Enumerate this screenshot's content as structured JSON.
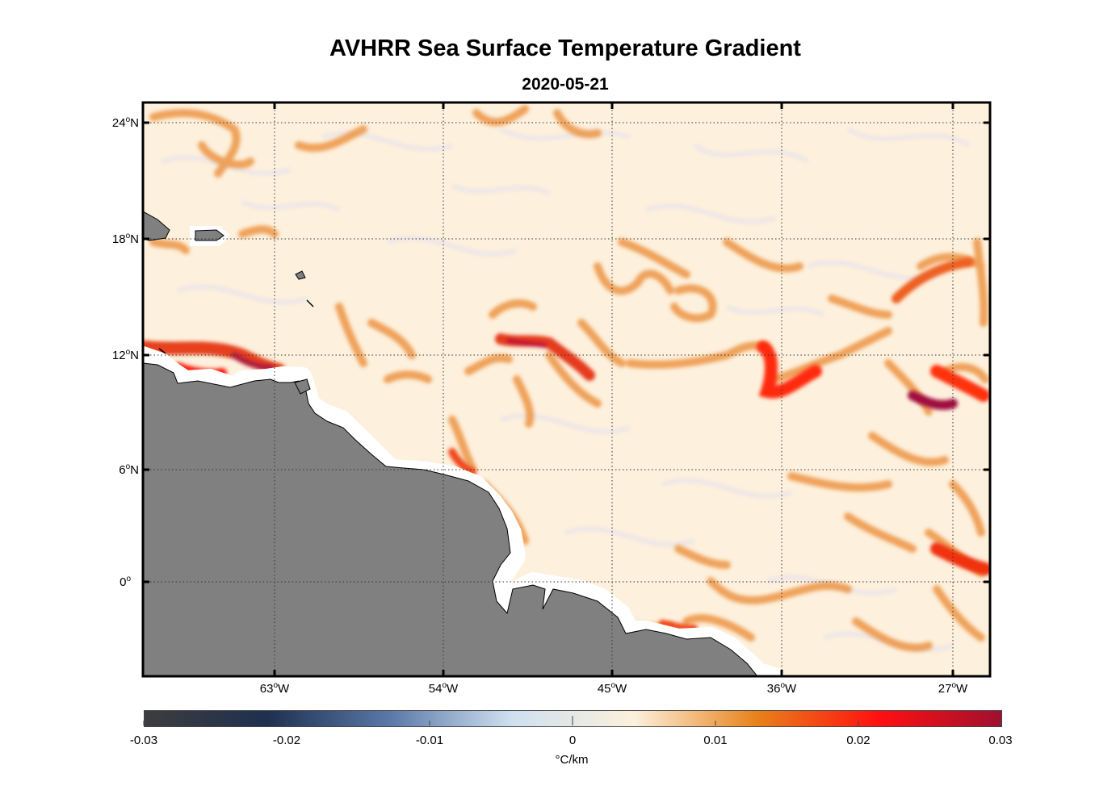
{
  "title": "AVHRR Sea Surface Temperature Gradient",
  "subtitle": "2020-05-21",
  "map": {
    "projection": "equirectangular",
    "lon_range": [
      -70,
      -25
    ],
    "lat_range": [
      -5,
      25
    ],
    "land_color": "#808080",
    "coast_outline_color": "#ffffff",
    "grid": "dotted",
    "lat_ticks": [
      {
        "deg": "24",
        "suffix": "N"
      },
      {
        "deg": "18",
        "suffix": "N"
      },
      {
        "deg": "12",
        "suffix": "N"
      },
      {
        "deg": "6",
        "suffix": "N"
      },
      {
        "deg": "0",
        "suffix": ""
      }
    ],
    "lon_ticks": [
      {
        "deg": "63",
        "suffix": "W"
      },
      {
        "deg": "54",
        "suffix": "W"
      },
      {
        "deg": "45",
        "suffix": "W"
      },
      {
        "deg": "36",
        "suffix": "W"
      },
      {
        "deg": "27",
        "suffix": "W"
      }
    ]
  },
  "colorbar": {
    "ticks": [
      "-0.03",
      "-0.02",
      "-0.01",
      "0",
      "0.01",
      "0.02",
      "0.03"
    ],
    "unit": "°C/km",
    "colors": [
      "#3d3d3d",
      "#1e3050",
      "#5a78a8",
      "#cfe0f0",
      "#fdf0dc",
      "#e8821a",
      "#ff1010",
      "#a01030"
    ]
  }
}
